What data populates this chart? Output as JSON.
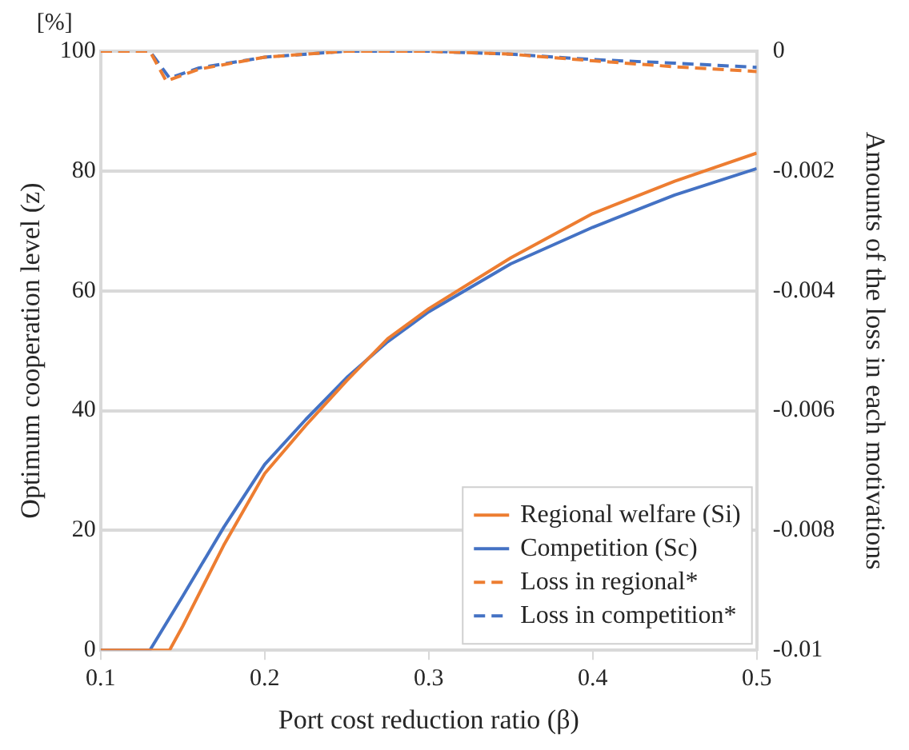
{
  "chart_data": {
    "type": "line",
    "xlabel": "Port cost reduction ratio (β)",
    "ylabel": "Optimum cooperation level (z)",
    "y2label": "Amounts of the loss in each motivations",
    "annotations": [
      "[%]"
    ],
    "xlim": [
      0.1,
      0.5
    ],
    "xticks": [
      0.1,
      0.2,
      0.3,
      0.4,
      0.5
    ],
    "ylim": [
      0,
      100
    ],
    "yticks": [
      0,
      20,
      40,
      60,
      80,
      100
    ],
    "y2lim": [
      -0.01,
      0
    ],
    "y2ticks": [
      -0.01,
      -0.008,
      -0.006,
      -0.004,
      -0.002,
      0
    ],
    "grid": "y",
    "legend": "bottom right",
    "marker": "none",
    "series": [
      {
        "name": "Regional welfare (Si)",
        "color": "#ed7d31",
        "line_style": "solid",
        "x": [
          0.1,
          0.142,
          0.15,
          0.175,
          0.2,
          0.225,
          0.25,
          0.275,
          0.3,
          0.35,
          0.4,
          0.45,
          0.5
        ],
        "values": [
          0,
          0,
          4,
          17.5,
          29.5,
          37.5,
          45,
          52,
          57,
          65.5,
          72.9,
          78.3,
          83
        ]
      },
      {
        "name": "Competition (Sc)",
        "color": "#4472c4",
        "line_style": "solid",
        "x": [
          0.1,
          0.13,
          0.15,
          0.175,
          0.2,
          0.225,
          0.25,
          0.275,
          0.3,
          0.35,
          0.4,
          0.45,
          0.5
        ],
        "values": [
          0,
          0,
          9,
          20.5,
          31,
          38.5,
          45.5,
          51.5,
          56.5,
          64.5,
          70.6,
          76,
          80.4
        ]
      },
      {
        "name": "Loss in regional*",
        "color": "#ed7d31",
        "line_style": "dashed",
        "axis": "y2",
        "x": [
          0.1,
          0.13,
          0.14,
          0.16,
          0.2,
          0.25,
          0.3,
          0.35,
          0.4,
          0.45,
          0.5
        ],
        "values": [
          0,
          0,
          -0.0005,
          -0.0003,
          -0.0001,
          0,
          0,
          -5e-05,
          -0.00016,
          -0.00026,
          -0.00034
        ]
      },
      {
        "name": "Loss in competition*",
        "color": "#4472c4",
        "line_style": "dashed",
        "axis": "y2",
        "x": [
          0.1,
          0.13,
          0.142,
          0.16,
          0.2,
          0.25,
          0.3,
          0.35,
          0.4,
          0.45,
          0.5
        ],
        "values": [
          0,
          0,
          -0.00045,
          -0.00028,
          -0.0001,
          0,
          0,
          -5e-05,
          -0.00014,
          -0.0002,
          -0.00027
        ]
      }
    ]
  }
}
